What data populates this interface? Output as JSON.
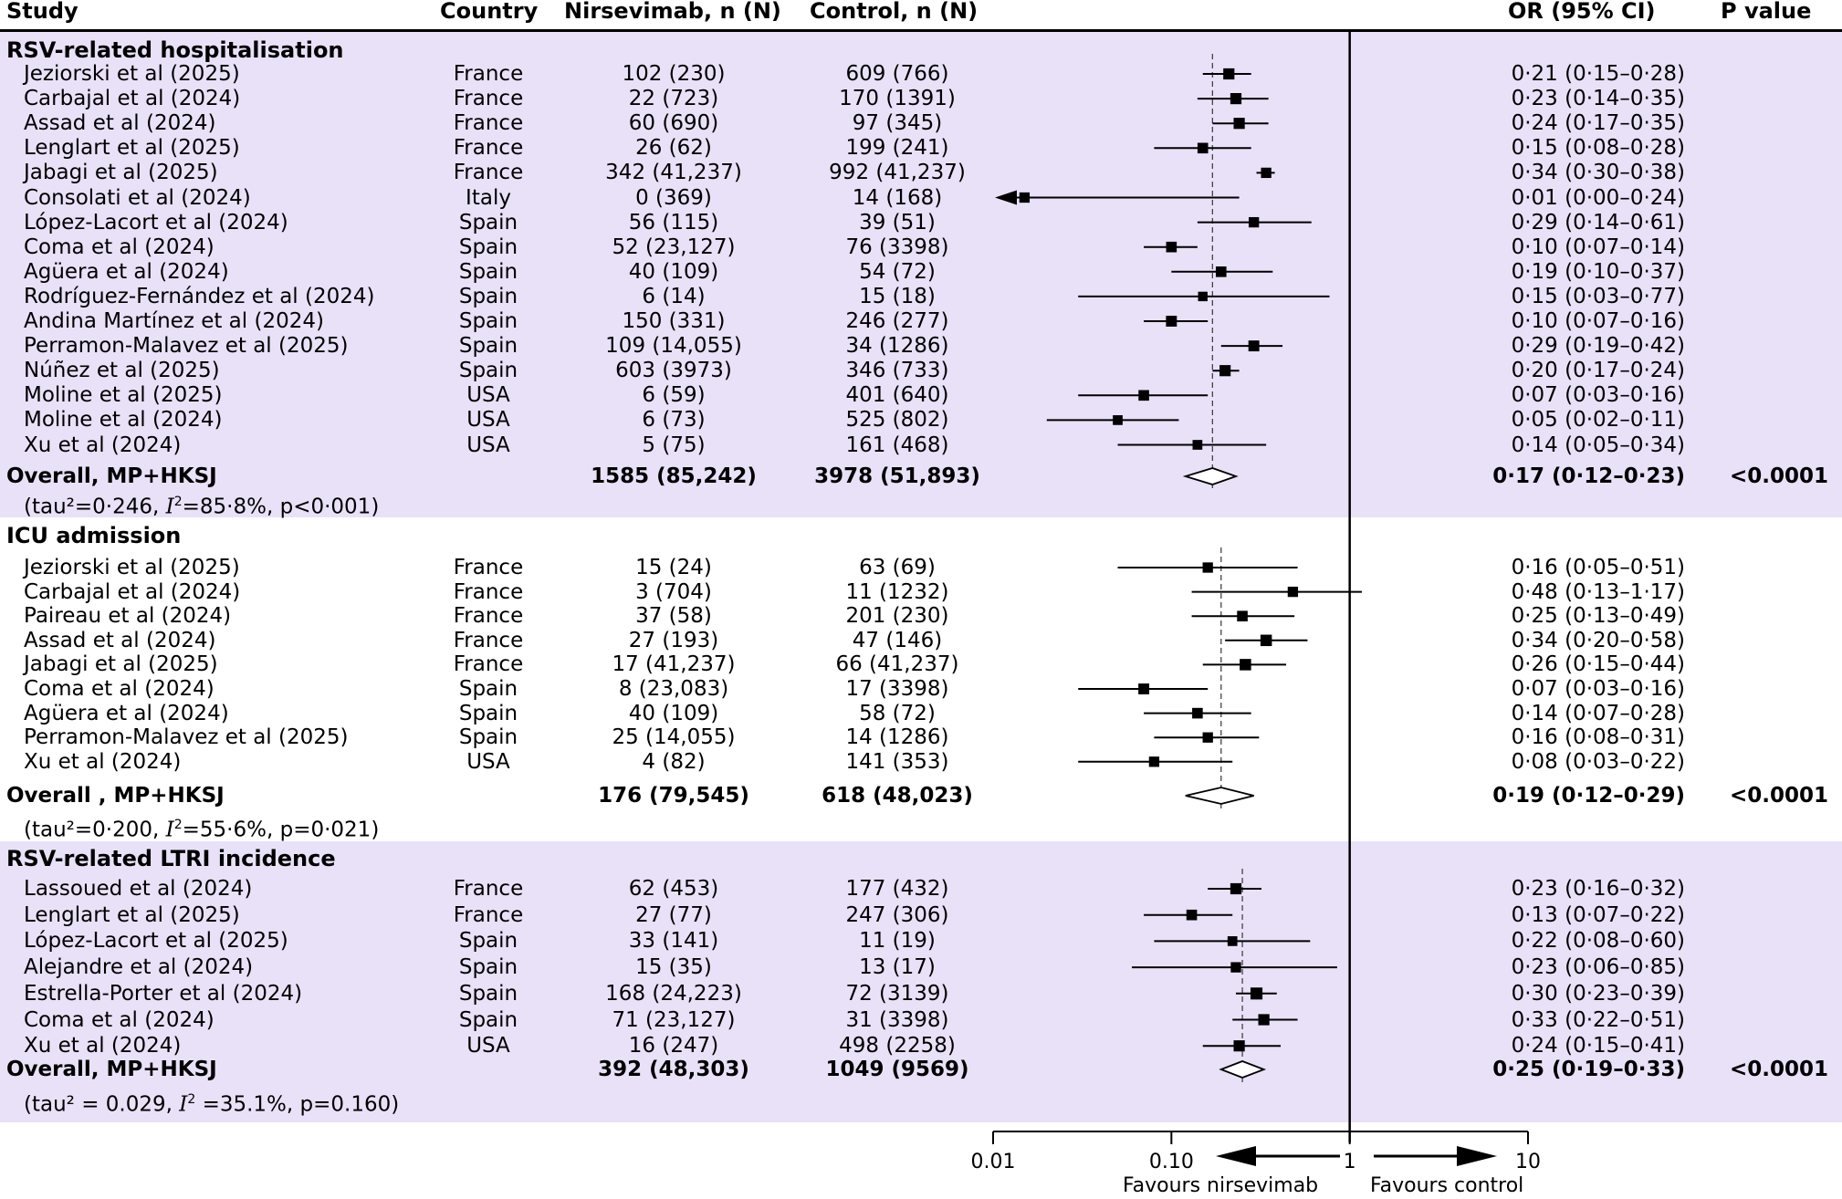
{
  "headers": {
    "study": "Study",
    "country": "Country",
    "nirsevimab": "Nirsevimab, n (N)",
    "control": "Control, n (N)",
    "or": "OR (95% CI)",
    "p": "P value"
  },
  "axis": {
    "scale": "log",
    "ticks": [
      "0.01",
      "0.10",
      "1",
      "10"
    ],
    "favours_left": "Favours nirsevimab",
    "favours_right": "Favours control"
  },
  "colors": {
    "band": "#e9e1f7",
    "marker": "#000000"
  },
  "chart_data": {
    "type": "forest",
    "x_scale": "log",
    "xlim": [
      0.01,
      10
    ],
    "null_line": 1,
    "sections": [
      {
        "title": "RSV-related hospitalisation",
        "pooled_label": "Overall, MP+HKSJ",
        "heterogeneity": {
          "pre": "(tau²=0·246, ",
          "i2sym": "I",
          "i2sup": "2",
          "post": "=85·8%, p<0·001)"
        },
        "studies": [
          {
            "study": "Jeziorski et al (2025)",
            "country": "France",
            "nirsevimab": "102 (230)",
            "control": "609 (766)",
            "or_text": "0·21 (0·15–0·28)",
            "or": 0.21,
            "lo": 0.15,
            "hi": 0.28,
            "weight": 0.7
          },
          {
            "study": "Carbajal et al (2024)",
            "country": "France",
            "nirsevimab": "22 (723)",
            "control": "170 (1391)",
            "or_text": "0·23 (0·14–0·35)",
            "or": 0.23,
            "lo": 0.14,
            "hi": 0.35,
            "weight": 0.7
          },
          {
            "study": "Assad et al (2024)",
            "country": "France",
            "nirsevimab": "60 (690)",
            "control": "97 (345)",
            "or_text": "0·24 (0·17–0·35)",
            "or": 0.24,
            "lo": 0.17,
            "hi": 0.35,
            "weight": 0.7
          },
          {
            "study": "Lenglart et al (2025)",
            "country": "France",
            "nirsevimab": "26 (62)",
            "control": "199 (241)",
            "or_text": "0·15 (0·08–0·28)",
            "or": 0.15,
            "lo": 0.08,
            "hi": 0.28,
            "weight": 0.6
          },
          {
            "study": "Jabagi et al (2025)",
            "country": "France",
            "nirsevimab": "342 (41,237)",
            "control": "992 (41,237)",
            "or_text": "0·34 (0·30–0·38)",
            "or": 0.34,
            "lo": 0.3,
            "hi": 0.38,
            "weight": 0.55
          },
          {
            "study": "Consolati et al (2024)",
            "country": "Italy",
            "nirsevimab": "0 (369)",
            "control": "14 (168)",
            "or_text": "0·01 (0·00–0·24)",
            "or": 0.015,
            "lo": 0.0,
            "hi": 0.24,
            "weight": 0.55,
            "arrow_left": true
          },
          {
            "study": "López-Lacort et al (2024)",
            "country": "Spain",
            "nirsevimab": "56 (115)",
            "control": "39 (51)",
            "or_text": "0·29 (0·14–0·61)",
            "or": 0.29,
            "lo": 0.14,
            "hi": 0.61,
            "weight": 0.55
          },
          {
            "study": "Coma et al (2024)",
            "country": "Spain",
            "nirsevimab": "52 (23,127)",
            "control": "76 (3398)",
            "or_text": "0·10 (0·07–0·14)",
            "or": 0.1,
            "lo": 0.07,
            "hi": 0.14,
            "weight": 0.6
          },
          {
            "study": "Agüera et al (2024)",
            "country": "Spain",
            "nirsevimab": "40 (109)",
            "control": "54 (72)",
            "or_text": "0·19 (0·10–0·37)",
            "or": 0.19,
            "lo": 0.1,
            "hi": 0.37,
            "weight": 0.6
          },
          {
            "study": "Rodríguez-Fernández et al (2024)",
            "country": "Spain",
            "nirsevimab": "6 (14)",
            "control": "15 (18)",
            "or_text": "0·15 (0·03–0·77)",
            "or": 0.15,
            "lo": 0.03,
            "hi": 0.77,
            "weight": 0.4
          },
          {
            "study": "Andina Martínez et al (2024)",
            "country": "Spain",
            "nirsevimab": "150 (331)",
            "control": "246 (277)",
            "or_text": "0·10 (0·07–0·16)",
            "or": 0.1,
            "lo": 0.07,
            "hi": 0.16,
            "weight": 0.65
          },
          {
            "study": "Perramon-Malavez et al (2025)",
            "country": "Spain",
            "nirsevimab": "109 (14,055)",
            "control": "34 (1286)",
            "or_text": "0·29 (0·19–0·42)",
            "or": 0.29,
            "lo": 0.19,
            "hi": 0.42,
            "weight": 0.65
          },
          {
            "study": "Núñez et al (2025)",
            "country": "Spain",
            "nirsevimab": "603 (3973)",
            "control": "346 (733)",
            "or_text": "0·20 (0·17–0·24)",
            "or": 0.2,
            "lo": 0.17,
            "hi": 0.24,
            "weight": 0.7
          },
          {
            "study": "Moline et al (2025)",
            "country": "USA",
            "nirsevimab": "6 (59)",
            "control": "401 (640)",
            "or_text": "0·07 (0·03–0·16)",
            "or": 0.07,
            "lo": 0.03,
            "hi": 0.16,
            "weight": 0.6
          },
          {
            "study": "Moline et al (2024)",
            "country": "USA",
            "nirsevimab": "6 (73)",
            "control": "525 (802)",
            "or_text": "0·05 (0·02–0·11)",
            "or": 0.05,
            "lo": 0.02,
            "hi": 0.11,
            "weight": 0.45
          },
          {
            "study": "Xu et al (2024)",
            "country": "USA",
            "nirsevimab": "5 (75)",
            "control": "161 (468)",
            "or_text": "0·14 (0·05–0·34)",
            "or": 0.14,
            "lo": 0.05,
            "hi": 0.34,
            "weight": 0.45
          }
        ],
        "pooled": {
          "nirsevimab": "1585 (85,242)",
          "control": "3978 (51,893)",
          "or_text": "0·17 (0·12–0·23)",
          "p": "<0.0001",
          "or": 0.17,
          "lo": 0.12,
          "hi": 0.23
        }
      },
      {
        "title": "ICU admission",
        "pooled_label": "Overall , MP+HKSJ",
        "heterogeneity": {
          "pre": "(tau²=0·200, ",
          "i2sym": "I",
          "i2sup": "2",
          "post": "=55·6%, p=0·021)"
        },
        "studies": [
          {
            "study": "Jeziorski et al (2025)",
            "country": "France",
            "nirsevimab": "15 (24)",
            "control": "63 (69)",
            "or_text": "0·16 (0·05–0·51)",
            "or": 0.16,
            "lo": 0.05,
            "hi": 0.51,
            "weight": 0.55
          },
          {
            "study": "Carbajal et al (2024)",
            "country": "France",
            "nirsevimab": "3 (704)",
            "control": "11 (1232)",
            "or_text": "0·48 (0·13–1·17)",
            "or": 0.48,
            "lo": 0.13,
            "hi": 1.17,
            "weight": 0.55
          },
          {
            "study": "Paireau et al (2024)",
            "country": "France",
            "nirsevimab": "37 (58)",
            "control": "201 (230)",
            "or_text": "0·25 (0·13–0·49)",
            "or": 0.25,
            "lo": 0.13,
            "hi": 0.49,
            "weight": 0.6
          },
          {
            "study": "Assad et al (2024)",
            "country": "France",
            "nirsevimab": "27 (193)",
            "control": "47 (146)",
            "or_text": "0·34 (0·20–0·58)",
            "or": 0.34,
            "lo": 0.2,
            "hi": 0.58,
            "weight": 0.75
          },
          {
            "study": "Jabagi et al (2025)",
            "country": "France",
            "nirsevimab": "17 (41,237)",
            "control": "66 (41,237)",
            "or_text": "0·26 (0·15–0·44)",
            "or": 0.26,
            "lo": 0.15,
            "hi": 0.44,
            "weight": 0.75
          },
          {
            "study": "Coma et al (2024)",
            "country": "Spain",
            "nirsevimab": "8 (23,083)",
            "control": "17 (3398)",
            "or_text": "0·07 (0·03–0·16)",
            "or": 0.07,
            "lo": 0.03,
            "hi": 0.16,
            "weight": 0.65
          },
          {
            "study": "Agüera et al (2024)",
            "country": "Spain",
            "nirsevimab": "40 (109)",
            "control": "58 (72)",
            "or_text": "0·14 (0·07–0·28)",
            "or": 0.14,
            "lo": 0.07,
            "hi": 0.28,
            "weight": 0.6
          },
          {
            "study": "Perramon-Malavez et al (2025)",
            "country": "Spain",
            "nirsevimab": "25 (14,055)",
            "control": "14 (1286)",
            "or_text": "0·16 (0·08–0·31)",
            "or": 0.16,
            "lo": 0.08,
            "hi": 0.31,
            "weight": 0.55
          },
          {
            "study": "Xu et al (2024)",
            "country": "USA",
            "nirsevimab": "4 (82)",
            "control": "141 (353)",
            "or_text": "0·08 (0·03–0·22)",
            "or": 0.08,
            "lo": 0.03,
            "hi": 0.22,
            "weight": 0.55
          }
        ],
        "pooled": {
          "nirsevimab": "176 (79,545)",
          "control": "618 (48,023)",
          "or_text": "0·19 (0·12–0·29)",
          "p": "<0.0001",
          "or": 0.19,
          "lo": 0.12,
          "hi": 0.29
        }
      },
      {
        "title": "RSV-related LTRI incidence",
        "pooled_label": "Overall, MP+HKSJ",
        "heterogeneity": {
          "pre": "(tau² = 0.029, ",
          "i2sym": "I",
          "i2sup": "2",
          "post": " =35.1%, p=0.160)"
        },
        "studies": [
          {
            "study": "Lassoued et al (2024)",
            "country": "France",
            "nirsevimab": "62 (453)",
            "control": "177 (432)",
            "or_text": "0·23 (0·16–0·32)",
            "or": 0.23,
            "lo": 0.16,
            "hi": 0.32,
            "weight": 0.7
          },
          {
            "study": "Lenglart et al (2025)",
            "country": "France",
            "nirsevimab": "27 (77)",
            "control": "247 (306)",
            "or_text": "0·13 (0·07–0·22)",
            "or": 0.13,
            "lo": 0.07,
            "hi": 0.22,
            "weight": 0.6
          },
          {
            "study": "López-Lacort et al (2025)",
            "country": "Spain",
            "nirsevimab": "33 (141)",
            "control": "11 (19)",
            "or_text": "0·22 (0·08–0·60)",
            "or": 0.22,
            "lo": 0.08,
            "hi": 0.6,
            "weight": 0.45
          },
          {
            "study": "Alejandre et al (2024)",
            "country": "Spain",
            "nirsevimab": "15 (35)",
            "control": "13 (17)",
            "or_text": "0·23 (0·06–0·85)",
            "or": 0.23,
            "lo": 0.06,
            "hi": 0.85,
            "weight": 0.55
          },
          {
            "study": "Estrella-Porter et al (2024)",
            "country": "Spain",
            "nirsevimab": "168 (24,223)",
            "control": "72 (3139)",
            "or_text": "0·30 (0·23–0·39)",
            "or": 0.3,
            "lo": 0.23,
            "hi": 0.39,
            "weight": 0.85
          },
          {
            "study": "Coma et al (2024)",
            "country": "Spain",
            "nirsevimab": "71 (23,127)",
            "control": "31 (3398)",
            "or_text": "0·33 (0·22–0·51)",
            "or": 0.33,
            "lo": 0.22,
            "hi": 0.51,
            "weight": 0.7
          },
          {
            "study": "Xu et al (2024)",
            "country": "USA",
            "nirsevimab": "16 (247)",
            "control": "498 (2258)",
            "or_text": "0·24 (0·15–0·41)",
            "or": 0.24,
            "lo": 0.15,
            "hi": 0.41,
            "weight": 0.7
          }
        ],
        "pooled": {
          "nirsevimab": "392 (48,303)",
          "control": "1049 (9569)",
          "or_text": "0·25 (0·19–0·33)",
          "p": "<0.0001",
          "or": 0.25,
          "lo": 0.19,
          "hi": 0.33
        }
      }
    ]
  }
}
